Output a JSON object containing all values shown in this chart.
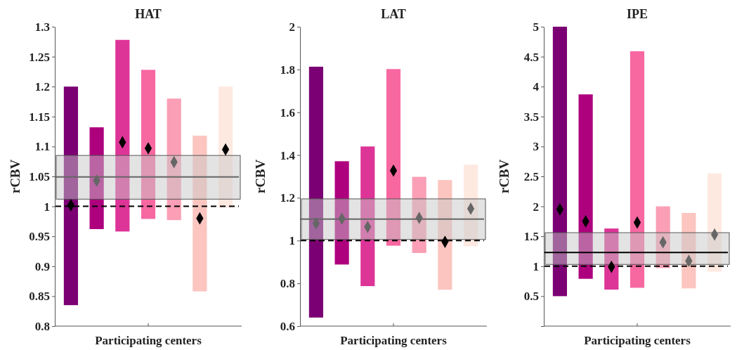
{
  "chart_data": [
    {
      "type": "bar",
      "title": "HAT",
      "xlabel": "Participating centers",
      "ylabel": "rCBV",
      "categories": [
        null,
        null,
        null,
        null,
        null,
        null,
        null
      ],
      "ylim": [
        0.8,
        1.3
      ],
      "yticks": [
        0.8,
        0.85,
        0.9,
        0.95,
        1,
        1.05,
        1.1,
        1.15,
        1.2,
        1.25,
        1.3
      ],
      "series": [
        {
          "type": "bar",
          "base": [
            0.835,
            0.962,
            0.958,
            0.979,
            0.977,
            0.858,
            0.998
          ],
          "colors": [
            "#7b0073",
            "#ae017e",
            "#dd3497",
            "#f768a1",
            "#fa9fb5",
            "#fcc5c0",
            "#fee9e1"
          ],
          "values": [
            0.365,
            0.17,
            0.32,
            0.249,
            0.203,
            0.26,
            0.202
          ]
        },
        {
          "type": "scatter",
          "marker": "diamond",
          "colors": [
            "#000000",
            "#666666",
            "#000000",
            "#000000",
            "#666666",
            "#000000",
            "#000000"
          ],
          "values": [
            1.002,
            1.043,
            1.107,
            1.097,
            1.074,
            0.98,
            1.095
          ]
        }
      ],
      "bands": [
        {
          "axis": "y",
          "from": 1.012,
          "to": 1.085,
          "color": "#c8c8c8"
        }
      ],
      "ref_lines": [
        {
          "axis": "y",
          "value": 1.049,
          "color": "#666666",
          "line_style": "solid"
        },
        {
          "axis": "y",
          "value": 1,
          "color": "#000000",
          "line_style": "dashed"
        }
      ]
    },
    {
      "type": "bar",
      "title": "LAT",
      "xlabel": "Participating centers",
      "ylabel": "rCBV",
      "categories": [
        null,
        null,
        null,
        null,
        null,
        null,
        null
      ],
      "ylim": [
        0.6,
        2
      ],
      "yticks": [
        0.6,
        0.8,
        1,
        1.2,
        1.4,
        1.6,
        1.8,
        2
      ],
      "series": [
        {
          "type": "bar",
          "base": [
            0.64,
            0.888,
            0.787,
            0.976,
            0.942,
            0.77,
            0.973
          ],
          "colors": [
            "#7b0073",
            "#ae017e",
            "#dd3497",
            "#f768a1",
            "#fa9fb5",
            "#fcc5c0",
            "#fee9e1"
          ],
          "values": [
            1.173,
            0.483,
            0.653,
            0.826,
            0.356,
            0.513,
            0.382
          ]
        },
        {
          "type": "scatter",
          "marker": "diamond",
          "colors": [
            "#666666",
            "#666666",
            "#666666",
            "#000000",
            "#666666",
            "#000000",
            "#666666"
          ],
          "values": [
            1.08,
            1.102,
            1.064,
            1.327,
            1.106,
            0.994,
            1.149
          ]
        }
      ],
      "bands": [
        {
          "axis": "y",
          "from": 1.005,
          "to": 1.195,
          "color": "#c8c8c8"
        }
      ],
      "ref_lines": [
        {
          "axis": "y",
          "value": 1.1,
          "color": "#666666",
          "line_style": "solid"
        },
        {
          "axis": "y",
          "value": 1,
          "color": "#000000",
          "line_style": "dashed"
        }
      ]
    },
    {
      "type": "bar",
      "title": "IPE",
      "xlabel": "Participating centers",
      "ylabel": "rCBV",
      "categories": [
        null,
        null,
        null,
        null,
        null,
        null,
        null
      ],
      "ylim": [
        0,
        5
      ],
      "yticks": [
        {
          "value": 0,
          "label": null
        },
        0.5,
        1,
        1.5,
        2,
        2.5,
        3,
        3.5,
        4,
        4.5,
        5
      ],
      "series": [
        {
          "type": "bar",
          "base": [
            0.5,
            0.79,
            0.61,
            0.64,
            0.97,
            0.63,
            0.91
          ],
          "colors": [
            "#7b0073",
            "#ae017e",
            "#dd3497",
            "#f768a1",
            "#fa9fb5",
            "#fcc5c0",
            "#fee9e1"
          ],
          "values": [
            4.5,
            3.08,
            1.02,
            3.95,
            1.03,
            1.26,
            1.64
          ]
        },
        {
          "type": "scatter",
          "marker": "diamond",
          "colors": [
            "#000000",
            "#000000",
            "#000000",
            "#000000",
            "#666666",
            "#666666",
            "#666666"
          ],
          "values": [
            1.95,
            1.75,
            0.99,
            1.73,
            1.4,
            1.09,
            1.53
          ]
        }
      ],
      "bands": [
        {
          "axis": "y",
          "from": 1.03,
          "to": 1.56,
          "color": "#c8c8c8"
        }
      ],
      "ref_lines": [
        {
          "axis": "y",
          "value": 1.23,
          "color": "#000000",
          "line_style": "solid"
        },
        {
          "axis": "y",
          "value": 1,
          "color": "#000000",
          "line_style": "dashed"
        }
      ]
    }
  ]
}
